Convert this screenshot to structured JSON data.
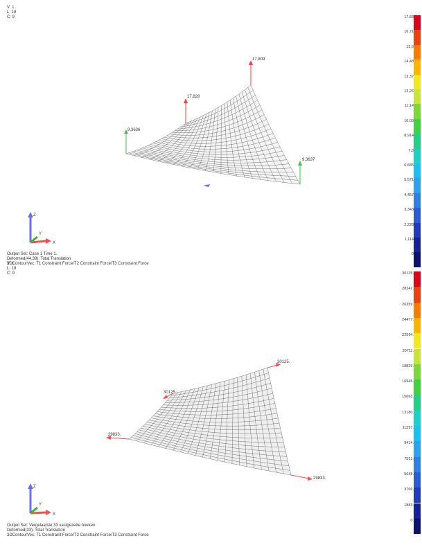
{
  "viewports": [
    {
      "info": {
        "v": "V: 1",
        "l": "L: 18",
        "c": "C: 9"
      },
      "footer": {
        "line1": "Output Set: Case 1 Time 1.",
        "line2": "Deformed(44.38): Total Translation",
        "line3": "3DContourVec: T1 Constraint Force/T2 Constraint Force/T3 Constraint Force"
      },
      "annotations": {
        "a1": "9,3636",
        "a2": "17,828",
        "a3": "17,809",
        "a4": "9,3637"
      },
      "axis": {
        "x": "X",
        "y": "Y",
        "z": "Z"
      },
      "legend": [
        "17,83",
        "16,71",
        "15,6",
        "14,48",
        "13,37",
        "12,26",
        "11,14",
        "10,03",
        "8,914",
        "7,8",
        "6,685",
        "5,571",
        "4,457",
        "3,343",
        "2,228",
        "1,114",
        "0"
      ]
    },
    {
      "info": {
        "v": "V: 1",
        "l": "L: 18",
        "c": "C: 9"
      },
      "footer": {
        "line1": "Output Set: Vergelaatste 33 vastgezette hoeken",
        "line2": "Deformed(33): Total Translation",
        "line3": "3DContourVec: T1 Constraint Force/T2 Constraint Force/T3 Constraint Force"
      },
      "annotations": {
        "a1": "29833.",
        "a2": "30125.",
        "a3": "30125.",
        "a4": "29833."
      },
      "axis": {
        "x": "X",
        "y": "Y",
        "z": "Z"
      },
      "legend": [
        "30125.",
        "28242.",
        "26359.",
        "24477.",
        "22594.",
        "20711.",
        "18829.",
        "16945.",
        "15063.",
        "13180.",
        "11297.",
        "9414.",
        "7531.",
        "5648.",
        "3766.",
        "1883.",
        "0."
      ]
    }
  ],
  "legend_colors": [
    "#e0001a",
    "#f23e0c",
    "#ff7a00",
    "#ffb400",
    "#f3e81a",
    "#c6e43a",
    "#7bd83b",
    "#3fd33f",
    "#22cf86",
    "#19d2c8",
    "#16c2f2",
    "#2aa2f0",
    "#2e7fe6",
    "#2a5cd6",
    "#1f3bbf",
    "#15229b",
    "#0b1170"
  ]
}
